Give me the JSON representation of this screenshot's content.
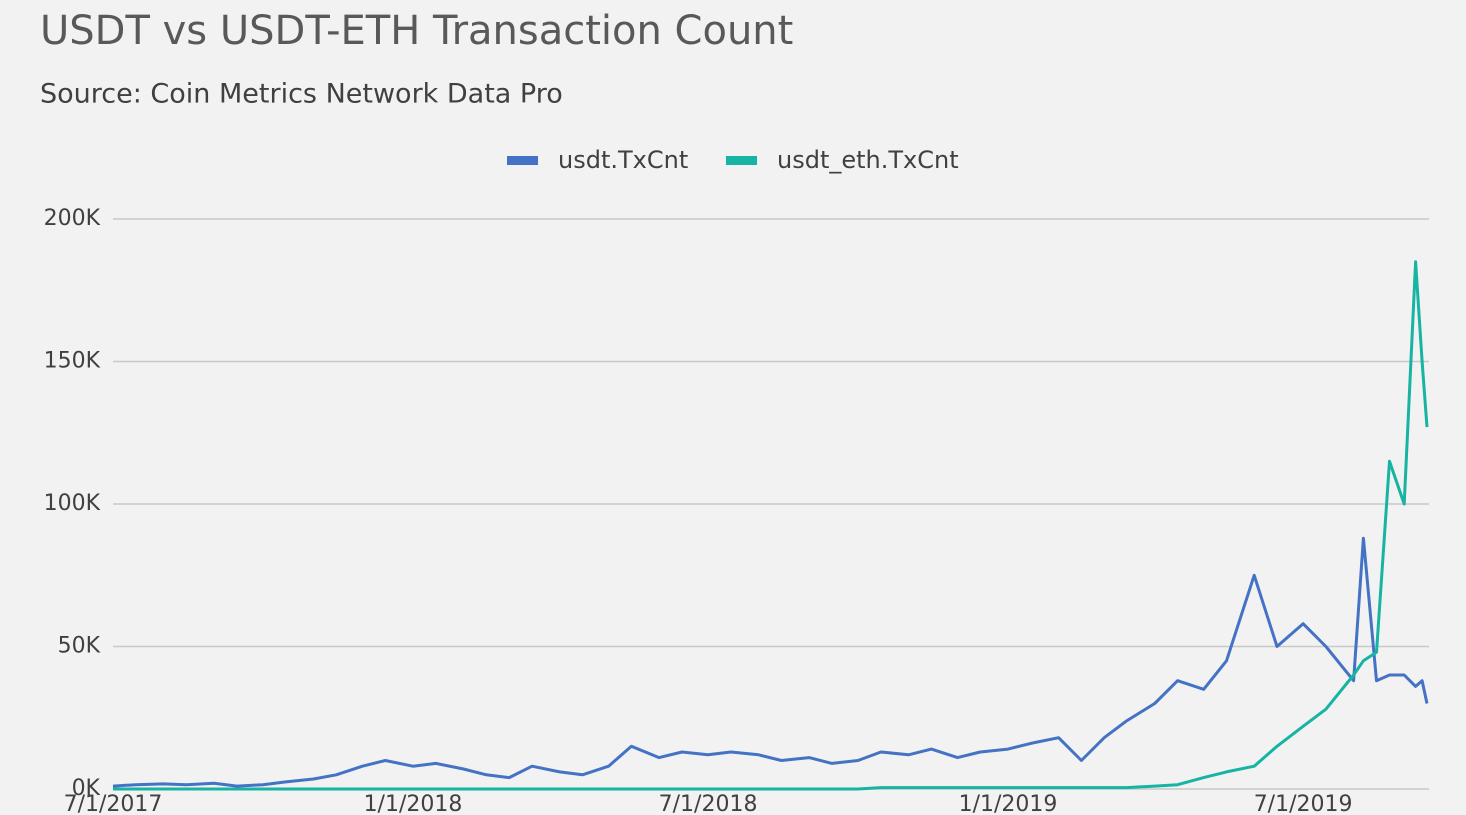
{
  "chart_data": {
    "type": "line",
    "title": "USDT vs USDT-ETH Transaction Count",
    "subtitle": "Source: Coin Metrics Network Data Pro",
    "x": [
      "2017-07-01",
      "2017-07-15",
      "2017-08-01",
      "2017-08-15",
      "2017-09-01",
      "2017-09-15",
      "2017-10-01",
      "2017-10-15",
      "2017-11-01",
      "2017-11-15",
      "2017-12-01",
      "2017-12-15",
      "2018-01-01",
      "2018-01-15",
      "2018-02-01",
      "2018-02-15",
      "2018-03-01",
      "2018-03-15",
      "2018-04-01",
      "2018-04-15",
      "2018-05-01",
      "2018-05-15",
      "2018-06-01",
      "2018-06-15",
      "2018-07-01",
      "2018-07-15",
      "2018-08-01",
      "2018-08-15",
      "2018-09-01",
      "2018-09-15",
      "2018-10-01",
      "2018-10-15",
      "2018-11-01",
      "2018-11-15",
      "2018-12-01",
      "2018-12-15",
      "2019-01-01",
      "2019-01-15",
      "2019-02-01",
      "2019-02-15",
      "2019-03-01",
      "2019-03-15",
      "2019-04-01",
      "2019-04-15",
      "2019-05-01",
      "2019-05-15",
      "2019-06-01",
      "2019-06-15",
      "2019-07-01",
      "2019-07-15",
      "2019-08-01",
      "2019-08-07",
      "2019-08-15",
      "2019-08-23",
      "2019-09-01",
      "2019-09-08",
      "2019-09-12",
      "2019-09-15"
    ],
    "series": [
      {
        "name": "usdt.TxCnt",
        "color": "#4472c4",
        "values": [
          1000,
          1500,
          1800,
          1500,
          2000,
          1000,
          1500,
          2500,
          3500,
          5000,
          8000,
          10000,
          8000,
          9000,
          7000,
          5000,
          4000,
          8000,
          6000,
          5000,
          8000,
          15000,
          11000,
          13000,
          12000,
          13000,
          12000,
          10000,
          11000,
          9000,
          10000,
          13000,
          12000,
          14000,
          11000,
          13000,
          14000,
          16000,
          18000,
          10000,
          18000,
          24000,
          30000,
          38000,
          35000,
          45000,
          75000,
          50000,
          58000,
          50000,
          38000,
          88000,
          38000,
          40000,
          40000,
          36000,
          38000,
          30000
        ]
      },
      {
        "name": "usdt_eth.TxCnt",
        "color": "#17b3a3",
        "values": [
          0,
          0,
          0,
          0,
          0,
          0,
          0,
          0,
          0,
          0,
          0,
          0,
          0,
          0,
          0,
          0,
          0,
          0,
          0,
          0,
          0,
          0,
          0,
          0,
          0,
          0,
          0,
          0,
          0,
          0,
          0,
          500,
          500,
          500,
          500,
          500,
          500,
          500,
          500,
          500,
          500,
          500,
          1000,
          1500,
          4000,
          6000,
          8000,
          15000,
          22000,
          28000,
          40000,
          45000,
          48000,
          115000,
          100000,
          185000,
          150000,
          127000
        ]
      }
    ],
    "xlim": [
      "2017-07-01",
      "2019-09-15"
    ],
    "xticks": [
      {
        "value": "2017-07-01",
        "label": "7/1/2017"
      },
      {
        "value": "2018-01-01",
        "label": "1/1/2018"
      },
      {
        "value": "2018-07-01",
        "label": "7/1/2018"
      },
      {
        "value": "2019-01-01",
        "label": "1/1/2019"
      },
      {
        "value": "2019-07-01",
        "label": "7/1/2019"
      }
    ],
    "ylim": [
      0,
      200000
    ],
    "yticks": [
      {
        "value": 0,
        "label": "0K"
      },
      {
        "value": 50000,
        "label": "50K"
      },
      {
        "value": 100000,
        "label": "100K"
      },
      {
        "value": 150000,
        "label": "150K"
      },
      {
        "value": 200000,
        "label": "200K"
      }
    ],
    "grid": true,
    "legend": "top"
  }
}
